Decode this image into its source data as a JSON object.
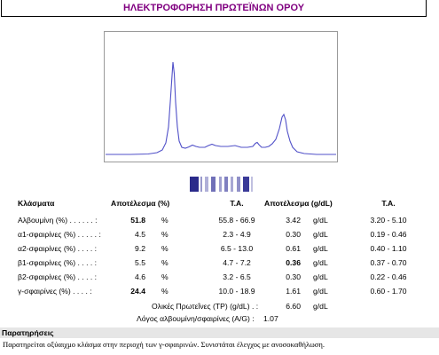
{
  "header": {
    "title": "ΗΛΕΚΤΡΟΦΟΡΗΣΗ ΠΡΩΤΕΪΝΩΝ ΟΡΟΥ"
  },
  "colors": {
    "title": "#800080",
    "trace": "#5050c8",
    "band": "#2a2a8a"
  },
  "table": {
    "headers": {
      "name": "Κλάσματα",
      "result_pct": "Αποτέλεσμα (%)",
      "ta": "Τ.Α.",
      "result_gdl": "Αποτέλεσμα (g/dL)",
      "ta2": "Τ.Α."
    },
    "rows": [
      {
        "name": "Αλβουμίνη (%) . . . . . . :",
        "value": "51.8",
        "pct": "%",
        "ta": "55.8 - 66.9",
        "gdl": "3.42",
        "unit": "g/dL",
        "ta2": "3.20 - 5.10",
        "value_bold": true,
        "gdl_bold": false
      },
      {
        "name": "α1-σφαιρίνες (%) . . . . . :",
        "value": "4.5",
        "pct": "%",
        "ta": "2.3 - 4.9",
        "gdl": "0.30",
        "unit": "g/dL",
        "ta2": "0.19 - 0.46",
        "value_bold": false,
        "gdl_bold": false
      },
      {
        "name": "α2-σφαιρίνες (%) . . . . :",
        "value": "9.2",
        "pct": "%",
        "ta": "6.5 - 13.0",
        "gdl": "0.61",
        "unit": "g/dL",
        "ta2": "0.40 - 1.10",
        "value_bold": false,
        "gdl_bold": false
      },
      {
        "name": "β1-σφαιρίνες (%) . . . . :",
        "value": "5.5",
        "pct": "%",
        "ta": "4.7 - 7.2",
        "gdl": "0.36",
        "unit": "g/dL",
        "ta2": "0.37 - 0.70",
        "value_bold": false,
        "gdl_bold": true
      },
      {
        "name": "β2-σφαιρίνες (%) . . . . :",
        "value": "4.6",
        "pct": "%",
        "ta": "3.2 - 6.5",
        "gdl": "0.30",
        "unit": "g/dL",
        "ta2": "0.22 - 0.46",
        "value_bold": false,
        "gdl_bold": false
      },
      {
        "name": "γ-σφαιρίνες (%) . . . . :",
        "value": "24.4",
        "pct": "%",
        "ta": "10.0 - 18.9",
        "gdl": "1.61",
        "unit": "g/dL",
        "ta2": "0.60 - 1.70",
        "value_bold": true,
        "gdl_bold": false
      }
    ],
    "total": {
      "label": "Ολικές Πρωτεΐνες (TP) (g/dL) . :",
      "gdl": "6.60",
      "unit": "g/dL"
    },
    "ratio": {
      "label": "Λόγος αλβουμίνη/σφαιρίνες (A/G) :",
      "value": "1.07"
    }
  },
  "remarks": {
    "heading": "Παρατηρήσεις",
    "text": "Παρατηρείται οξύαιχμο κλάσμα στην περιοχή των γ-σφαιρινών. Συνιστάται έλεγχος με ανοσοκαθήλωση."
  }
}
